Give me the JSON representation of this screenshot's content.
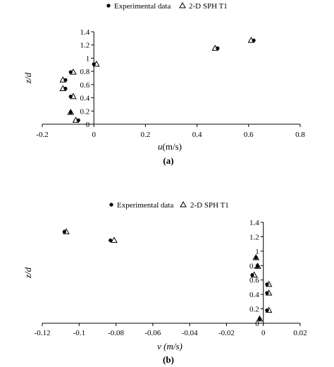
{
  "chart_data": [
    {
      "type": "scatter",
      "panel_label": "(a)",
      "xlabel_var": "u",
      "xlabel_unit": "(m/s)",
      "ylabel": "z/d",
      "xlim": [
        -0.2,
        0.8
      ],
      "ylim": [
        0,
        1.4
      ],
      "xticks": [
        -0.2,
        0,
        0.2,
        0.4,
        0.6,
        0.8
      ],
      "xtick_labels": [
        "-0.2",
        "0",
        "0.2",
        "0.4",
        "0.6",
        "0.8"
      ],
      "yticks": [
        0,
        0.2,
        0.4,
        0.6,
        0.8,
        1,
        1.2,
        1.4
      ],
      "ytick_labels": [
        "0",
        "0.2",
        "0.4",
        "0.6",
        "0.8",
        "1",
        "1.2",
        "1.4"
      ],
      "grid": false,
      "legend_position": "top",
      "series": [
        {
          "name": "Experimental data",
          "marker": "circle",
          "points": [
            [
              0.62,
              1.27
            ],
            [
              0.48,
              1.15
            ],
            [
              0.0,
              0.91
            ],
            [
              -0.09,
              0.79
            ],
            [
              -0.11,
              0.67
            ],
            [
              -0.11,
              0.54
            ],
            [
              -0.09,
              0.42
            ],
            [
              -0.09,
              0.18
            ],
            [
              -0.06,
              0.06
            ]
          ]
        },
        {
          "name": "2-D SPH T1",
          "marker": "triangle",
          "points": [
            [
              0.61,
              1.27
            ],
            [
              0.47,
              1.15
            ],
            [
              0.01,
              0.91
            ],
            [
              -0.08,
              0.79
            ],
            [
              -0.12,
              0.67
            ],
            [
              -0.12,
              0.54
            ],
            [
              -0.08,
              0.42
            ],
            [
              -0.09,
              0.18
            ],
            [
              -0.07,
              0.06
            ]
          ]
        }
      ]
    },
    {
      "type": "scatter",
      "panel_label": "(b)",
      "xlabel_var": "v",
      "xlabel_unit": " (m/s)",
      "ylabel": "z/d",
      "xlim": [
        -0.12,
        0.02
      ],
      "ylim": [
        0,
        1.4
      ],
      "xticks": [
        -0.12,
        -0.1,
        -0.08,
        -0.06,
        -0.04,
        -0.02,
        0,
        0.02
      ],
      "xtick_labels": [
        "-0.12",
        "-0.1",
        "-0.08",
        "-0.06",
        "-0.04",
        "-0.02",
        "0",
        "0.02"
      ],
      "yticks": [
        0,
        0.2,
        0.4,
        0.6,
        0.8,
        1,
        1.2,
        1.4
      ],
      "ytick_labels": [
        "0",
        "0.2",
        "0.4",
        "0.6",
        "0.8",
        "1",
        "1.2",
        "1.4"
      ],
      "grid": false,
      "legend_position": "top",
      "series": [
        {
          "name": "Experimental data",
          "marker": "circle",
          "points": [
            [
              -0.108,
              1.27
            ],
            [
              -0.083,
              1.15
            ],
            [
              -0.004,
              0.91
            ],
            [
              -0.003,
              0.79
            ],
            [
              -0.006,
              0.67
            ],
            [
              0.002,
              0.54
            ],
            [
              0.002,
              0.42
            ],
            [
              0.002,
              0.18
            ],
            [
              -0.002,
              0.06
            ]
          ]
        },
        {
          "name": "2-D SPH T1",
          "marker": "triangle",
          "points": [
            [
              -0.107,
              1.27
            ],
            [
              -0.081,
              1.15
            ],
            [
              -0.004,
              0.91
            ],
            [
              -0.003,
              0.79
            ],
            [
              -0.005,
              0.67
            ],
            [
              0.003,
              0.54
            ],
            [
              0.003,
              0.42
            ],
            [
              0.003,
              0.18
            ],
            [
              -0.002,
              0.06
            ]
          ]
        }
      ]
    }
  ]
}
